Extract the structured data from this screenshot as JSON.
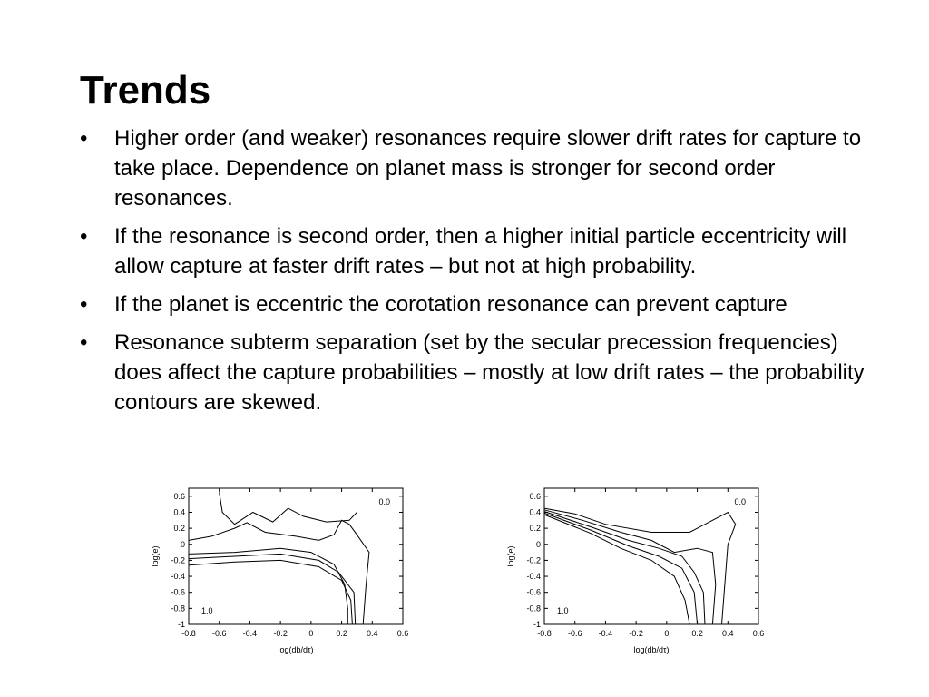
{
  "slide": {
    "title": "Trends",
    "bullets": [
      "Higher order (and weaker) resonances require slower drift rates for capture to take place. Dependence on planet mass is stronger for second order resonances.",
      "If the resonance is second order, then a higher initial particle eccentricity will allow capture at faster drift rates – but not at high probability.",
      "If the planet is eccentric the corotation resonance can prevent capture",
      "Resonance subterm separation (set by the secular precession frequencies) does affect the capture probabilities – mostly at low drift rates – the probability contours are skewed."
    ]
  },
  "chart_data": [
    {
      "type": "contour",
      "xlabel": "log(db/dτ)",
      "ylabel": "log(e)",
      "xlim": [
        -0.8,
        0.6
      ],
      "ylim": [
        -1,
        0.7
      ],
      "xticks": [
        "-0.8",
        "-0.6",
        "-0.4",
        "-0.2",
        "0",
        "0.2",
        "0.4",
        "0.6"
      ],
      "yticks": [
        "0.6",
        "0.4",
        "0.2",
        "0",
        "-0.2",
        "-0.4",
        "-0.6",
        "-0.8",
        "-1"
      ],
      "annotations": [
        "0.0",
        "1.0"
      ],
      "contours": [
        [
          [
            -0.6,
            0.65
          ],
          [
            -0.58,
            0.4
          ],
          [
            -0.5,
            0.25
          ],
          [
            -0.38,
            0.4
          ],
          [
            -0.25,
            0.28
          ],
          [
            -0.15,
            0.45
          ],
          [
            -0.05,
            0.35
          ],
          [
            0.1,
            0.28
          ],
          [
            0.25,
            0.3
          ],
          [
            0.3,
            0.4
          ]
        ],
        [
          [
            -0.8,
            0.05
          ],
          [
            -0.65,
            0.1
          ],
          [
            -0.5,
            0.2
          ],
          [
            -0.42,
            0.27
          ],
          [
            -0.3,
            0.15
          ],
          [
            -0.1,
            0.1
          ],
          [
            0.05,
            0.05
          ],
          [
            0.15,
            0.12
          ],
          [
            0.2,
            0.3
          ],
          [
            0.25,
            0.25
          ],
          [
            0.3,
            0.12
          ],
          [
            0.38,
            -0.1
          ],
          [
            0.36,
            -0.5
          ],
          [
            0.34,
            -1
          ]
        ],
        [
          [
            -0.8,
            -0.12
          ],
          [
            -0.5,
            -0.1
          ],
          [
            -0.2,
            -0.05
          ],
          [
            0.0,
            -0.1
          ],
          [
            0.15,
            -0.25
          ],
          [
            0.22,
            -0.5
          ],
          [
            0.24,
            -0.8
          ],
          [
            0.24,
            -1
          ]
        ],
        [
          [
            -0.8,
            -0.18
          ],
          [
            -0.5,
            -0.15
          ],
          [
            -0.2,
            -0.12
          ],
          [
            0.05,
            -0.2
          ],
          [
            0.18,
            -0.35
          ],
          [
            0.28,
            -0.6
          ],
          [
            0.29,
            -1
          ]
        ],
        [
          [
            -0.8,
            -0.26
          ],
          [
            -0.5,
            -0.22
          ],
          [
            -0.2,
            -0.2
          ],
          [
            0.05,
            -0.28
          ],
          [
            0.2,
            -0.45
          ],
          [
            0.26,
            -0.7
          ],
          [
            0.27,
            -1
          ]
        ]
      ]
    },
    {
      "type": "contour",
      "xlabel": "log(db/dτ)",
      "ylabel": "log(e)",
      "xlim": [
        -0.8,
        0.6
      ],
      "ylim": [
        -1,
        0.7
      ],
      "xticks": [
        "-0.8",
        "-0.6",
        "-0.4",
        "-0.2",
        "0",
        "0.2",
        "0.4",
        "0.6"
      ],
      "yticks": [
        "0.6",
        "0.4",
        "0.2",
        "0",
        "-0.2",
        "-0.4",
        "-0.6",
        "-0.8",
        "-1"
      ],
      "annotations": [
        "0.0",
        "1.0"
      ],
      "contours": [
        [
          [
            -0.8,
            0.45
          ],
          [
            -0.6,
            0.38
          ],
          [
            -0.4,
            0.25
          ],
          [
            -0.1,
            0.15
          ],
          [
            0.15,
            0.15
          ],
          [
            0.3,
            0.3
          ],
          [
            0.4,
            0.4
          ],
          [
            0.45,
            0.25
          ],
          [
            0.4,
            0.0
          ],
          [
            0.38,
            -0.5
          ],
          [
            0.36,
            -1
          ]
        ],
        [
          [
            -0.8,
            0.43
          ],
          [
            -0.55,
            0.3
          ],
          [
            -0.3,
            0.15
          ],
          [
            -0.1,
            0.05
          ],
          [
            0.05,
            -0.1
          ],
          [
            0.2,
            -0.05
          ],
          [
            0.3,
            -0.1
          ],
          [
            0.32,
            -0.5
          ],
          [
            0.3,
            -1
          ]
        ],
        [
          [
            -0.8,
            0.41
          ],
          [
            -0.5,
            0.22
          ],
          [
            -0.25,
            0.05
          ],
          [
            -0.05,
            -0.05
          ],
          [
            0.1,
            -0.15
          ],
          [
            0.18,
            -0.35
          ],
          [
            0.24,
            -0.6
          ],
          [
            0.25,
            -1
          ]
        ],
        [
          [
            -0.8,
            0.39
          ],
          [
            -0.5,
            0.18
          ],
          [
            -0.25,
            -0.02
          ],
          [
            -0.05,
            -0.15
          ],
          [
            0.1,
            -0.3
          ],
          [
            0.18,
            -0.6
          ],
          [
            0.2,
            -1
          ]
        ],
        [
          [
            -0.8,
            0.37
          ],
          [
            -0.5,
            0.14
          ],
          [
            -0.3,
            -0.05
          ],
          [
            -0.1,
            -0.2
          ],
          [
            0.05,
            -0.4
          ],
          [
            0.12,
            -0.7
          ],
          [
            0.15,
            -1
          ]
        ]
      ]
    }
  ]
}
